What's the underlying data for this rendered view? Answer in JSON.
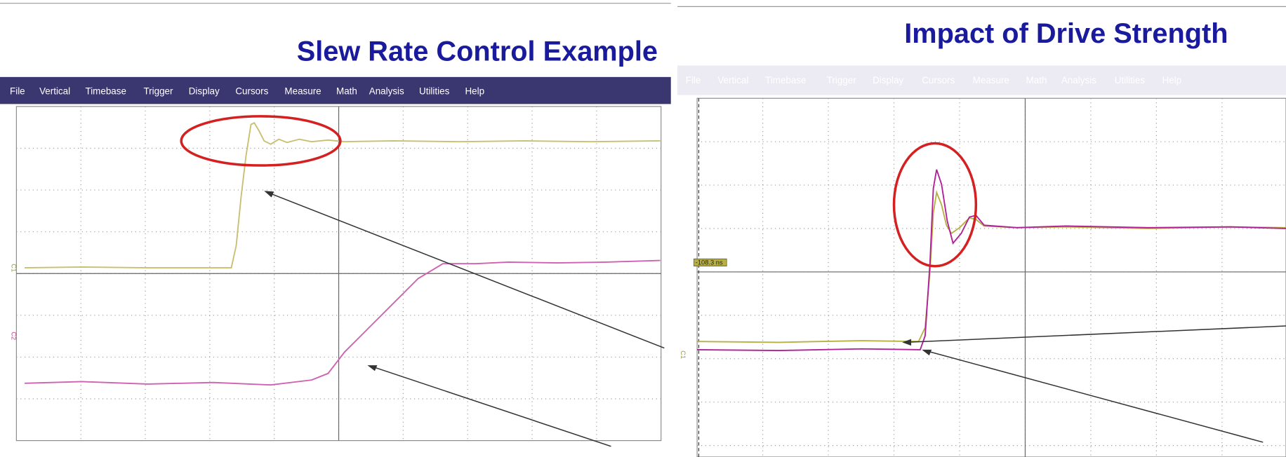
{
  "left": {
    "title": "Slew Rate Control Example",
    "menu": [
      "File",
      "Vertical",
      "Timebase",
      "Trigger",
      "Display",
      "Cursors",
      "Measure",
      "Math",
      "Analysis",
      "Utilities",
      "Help"
    ],
    "channels": [
      "C1",
      "C2"
    ]
  },
  "right": {
    "title": "Impact of Drive Strength",
    "menu": [
      "File",
      "Vertical",
      "Timebase",
      "Trigger",
      "Display",
      "Cursors",
      "Measure",
      "Math",
      "Analysis",
      "Utilities",
      "Help"
    ],
    "channels": [
      "C1"
    ],
    "cursor_label": "-108.3 ns"
  }
}
